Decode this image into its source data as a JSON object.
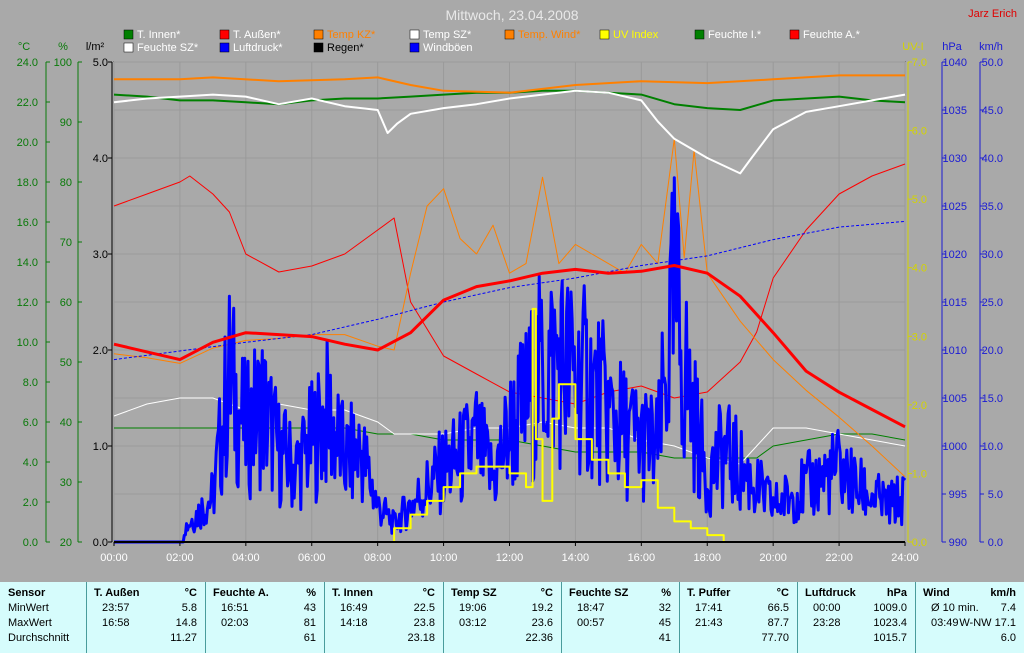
{
  "title": "Mittwoch, 23.04.2008",
  "author": "Jarz Erich",
  "axis_units": {
    "temp": "°C",
    "humidity": "%",
    "solar": "l/m²",
    "uv": "UV-I",
    "pressure": "hPa",
    "wind": "km/h"
  },
  "colors": {
    "background": "#a9a9a9",
    "title": "#e8e8e8",
    "author": "#e00000",
    "temp_axis": "#0a7a0a",
    "solar_axis": "#000000",
    "uv_axis": "#d4d400",
    "pressure_axis": "#1a1ad4",
    "t_innen": "#008000",
    "t_aussen": "#ff0000",
    "temp_kz": "#ff8000",
    "temp_sz": "#ffffff",
    "temp_wind": "#ff8000",
    "uv_index": "#ffff00",
    "feuchte_i": "#008000",
    "feuchte_a": "#ff0000",
    "feuchte_sz": "#ffffff",
    "luftdruck": "#0000ff",
    "regen": "#000000",
    "windboeen": "#0000ff",
    "stats_bg": "#d6fcfc"
  },
  "legend": [
    {
      "name": "T. Innen*",
      "color": "#008000",
      "icon": "square-icon"
    },
    {
      "name": "T. Außen*",
      "color": "#ff0000",
      "icon": "square-icon"
    },
    {
      "name": "Temp KZ*",
      "color": "#ff8000",
      "icon": "square-icon"
    },
    {
      "name": "Temp SZ*",
      "color": "#ffffff",
      "icon": "square-icon"
    },
    {
      "name": "Temp. Wind*",
      "color": "#ff8000",
      "icon": "square-icon"
    },
    {
      "name": "UV Index",
      "color": "#ffff00",
      "icon": "square-icon"
    },
    {
      "name": "Feuchte I.*",
      "color": "#008000",
      "icon": "square-icon"
    },
    {
      "name": "Feuchte A.*",
      "color": "#ff0000",
      "icon": "square-icon"
    },
    {
      "name": "Feuchte SZ*",
      "color": "#ffffff",
      "icon": "square-icon"
    },
    {
      "name": "Luftdruck*",
      "color": "#0000ff",
      "icon": "square-icon"
    },
    {
      "name": "Regen*",
      "color": "#000000",
      "icon": "square-icon"
    },
    {
      "name": "Windböen",
      "color": "#0000ff",
      "icon": "square-icon"
    }
  ],
  "chart_data": {
    "type": "line",
    "title": "Mittwoch, 23.04.2008",
    "x_ticks": [
      "00:00",
      "02:00",
      "04:00",
      "06:00",
      "08:00",
      "10:00",
      "12:00",
      "14:00",
      "16:00",
      "18:00",
      "20:00",
      "22:00",
      "24:00"
    ],
    "x_range_hours": [
      0,
      24
    ],
    "grid": true,
    "axes": {
      "temp": {
        "unit": "°C",
        "range": [
          0,
          25
        ],
        "ticks": [
          "0.0",
          "2.0",
          "4.0",
          "6.0",
          "8.0",
          "10.0",
          "12.0",
          "14.0",
          "16.0",
          "18.0",
          "20.0",
          "22.0",
          "24.0"
        ]
      },
      "humidity": {
        "unit": "%",
        "range": [
          20,
          100
        ],
        "ticks": [
          "20",
          "30",
          "40",
          "50",
          "60",
          "70",
          "80",
          "90",
          "100"
        ]
      },
      "solar": {
        "unit": "l/m²",
        "range": [
          0,
          5
        ],
        "ticks": [
          "0.0",
          "1.0",
          "2.0",
          "3.0",
          "4.0",
          "5.0"
        ]
      },
      "uv": {
        "unit": "UV-I",
        "range": [
          0,
          7
        ],
        "ticks": [
          "0.0",
          "1.0",
          "2.0",
          "3.0",
          "4.0",
          "5.0",
          "6.0",
          "7.0"
        ]
      },
      "pressure": {
        "unit": "hPa",
        "range": [
          990,
          1040
        ],
        "ticks": [
          "990",
          "995",
          "1000",
          "1005",
          "1010",
          "1015",
          "1020",
          "1025",
          "1030",
          "1035",
          "1040"
        ]
      },
      "wind": {
        "unit": "km/h",
        "range": [
          0,
          50
        ],
        "ticks": [
          "0.0",
          "5.0",
          "10.0",
          "15.0",
          "20.0",
          "25.0",
          "30.0",
          "35.0",
          "40.0",
          "45.0",
          "50.0"
        ]
      }
    },
    "series": [
      {
        "name": "T. Innen*",
        "axis": "temp",
        "color": "#008000",
        "width": 2,
        "x": [
          0,
          1,
          2,
          3,
          4,
          5,
          6,
          7,
          8,
          9,
          10,
          11,
          12,
          13,
          14,
          15,
          16,
          17,
          18,
          19,
          20,
          21,
          22,
          23,
          24
        ],
        "y": [
          23.3,
          23.2,
          23.0,
          23.0,
          22.9,
          22.8,
          23.0,
          23.1,
          23.1,
          23.2,
          23.3,
          23.4,
          23.4,
          23.5,
          23.5,
          23.4,
          23.3,
          22.8,
          22.6,
          22.5,
          23.0,
          23.1,
          23.2,
          23.0,
          22.9
        ]
      },
      {
        "name": "Temp KZ*",
        "axis": "temp",
        "color": "#ff8000",
        "width": 2,
        "x": [
          0,
          2,
          3,
          5,
          7,
          8,
          9,
          10,
          12,
          14,
          16,
          18,
          20,
          22,
          24
        ],
        "y": [
          24.1,
          24.1,
          24.2,
          24.0,
          24.1,
          24.2,
          23.8,
          23.5,
          23.4,
          23.8,
          24.0,
          23.9,
          24.1,
          24.3,
          24.3
        ]
      },
      {
        "name": "Temp SZ*",
        "axis": "temp",
        "color": "#ffffff",
        "width": 2,
        "x": [
          0,
          1,
          2,
          3,
          4,
          5,
          6,
          7,
          8,
          8.3,
          8.6,
          9,
          10,
          11,
          12,
          13,
          14,
          15,
          16,
          16.5,
          17,
          18,
          19,
          19.3,
          20,
          21,
          22,
          23,
          24
        ],
        "y": [
          22.9,
          23.1,
          23.2,
          23.3,
          23.2,
          22.8,
          23.1,
          22.7,
          22.5,
          21.3,
          21.8,
          22.3,
          22.6,
          22.8,
          23.1,
          23.3,
          23.5,
          23.4,
          23.0,
          21.9,
          21.0,
          20.0,
          19.2,
          19.9,
          21.5,
          22.4,
          22.7,
          23.0,
          23.3
        ]
      },
      {
        "name": "Temp. Wind*",
        "axis": "temp",
        "color": "#ff8000",
        "width": 1,
        "x": [
          0,
          1,
          2,
          3,
          4,
          5,
          6,
          7,
          8,
          8.5,
          9,
          9.5,
          10,
          10.5,
          11,
          11.5,
          12,
          12.5,
          13,
          13.5,
          14,
          14.5,
          15,
          15.5,
          16,
          16.5,
          17,
          17.3,
          17.6,
          18,
          19,
          20,
          21,
          22,
          23,
          24
        ],
        "y": [
          9.8,
          9.6,
          9.3,
          10.1,
          10.5,
          10.6,
          10.8,
          10.8,
          10.2,
          10.0,
          14.0,
          17.5,
          18.4,
          15.8,
          15.0,
          16.5,
          14.0,
          14.5,
          19.0,
          14.5,
          15.5,
          15.0,
          14.5,
          14.0,
          15.5,
          14.5,
          21.0,
          14.8,
          20.4,
          14.0,
          11.5,
          9.5,
          7.9,
          6.5,
          5.0,
          3.4
        ]
      },
      {
        "name": "T. Außen*",
        "axis": "temp",
        "color": "#ff0000",
        "width": 3,
        "x": [
          0,
          1,
          2,
          3,
          4,
          5,
          6,
          7,
          8,
          9,
          10,
          11,
          12,
          13,
          14,
          15,
          16,
          17,
          18,
          19,
          20,
          21,
          22,
          23,
          24
        ],
        "y": [
          10.3,
          9.9,
          9.5,
          10.4,
          10.9,
          10.8,
          10.7,
          10.3,
          10.0,
          10.9,
          12.6,
          13.3,
          13.6,
          14.0,
          14.2,
          14.0,
          14.1,
          14.4,
          14.0,
          12.8,
          10.9,
          8.9,
          7.8,
          6.9,
          6.0
        ]
      },
      {
        "name": "Feuchte A.*",
        "axis": "humidity",
        "color": "#ff0000",
        "width": 1,
        "x": [
          0,
          1,
          2,
          2.3,
          3,
          3.5,
          4,
          5,
          6,
          7,
          8,
          8.5,
          9,
          10,
          11,
          12,
          13,
          14,
          15,
          16,
          17,
          18,
          19,
          19.5,
          20,
          21,
          22,
          23,
          24
        ],
        "y": [
          76,
          78,
          80,
          81,
          78,
          75,
          68,
          65,
          66,
          68,
          72,
          74,
          60,
          51,
          48,
          45,
          44,
          43,
          45,
          46,
          44,
          45,
          50,
          55,
          64,
          72,
          78,
          81,
          83
        ]
      },
      {
        "name": "Feuchte SZ*",
        "axis": "humidity",
        "color": "#ffffff",
        "width": 1,
        "x": [
          0,
          1,
          2,
          3,
          4,
          5,
          6,
          7,
          8,
          8.5,
          9,
          10,
          11,
          12,
          13,
          14,
          15,
          16,
          17,
          18,
          19,
          19.5,
          20,
          21,
          22,
          23,
          24
        ],
        "y": [
          41,
          43,
          44,
          44,
          42,
          43,
          42,
          42,
          40,
          38,
          38,
          38,
          39,
          39,
          40,
          39,
          39,
          37,
          36,
          34,
          33,
          36,
          39,
          39,
          38,
          37,
          36
        ]
      },
      {
        "name": "Feuchte I.*",
        "axis": "humidity",
        "color": "#008000",
        "width": 1,
        "x": [
          0,
          1,
          2,
          3,
          4,
          5,
          6,
          7,
          8,
          9,
          10,
          11,
          12,
          13,
          14,
          15,
          16,
          17,
          18,
          19,
          19.5,
          20,
          21,
          22,
          23,
          24
        ],
        "y": [
          39,
          39,
          39,
          39,
          39,
          39,
          39,
          39,
          38,
          38,
          37,
          37,
          37,
          36,
          35,
          35,
          35,
          34,
          34,
          34,
          34,
          36,
          37,
          38,
          38,
          37
        ]
      },
      {
        "name": "Luftdruck*",
        "axis": "pressure",
        "color": "#0000ff",
        "width": 1,
        "dashed": true,
        "x": [
          0,
          2,
          4,
          6,
          8,
          10,
          12,
          14,
          16,
          18,
          20,
          22,
          24
        ],
        "y": [
          1009.0,
          1009.9,
          1010.8,
          1011.6,
          1013.2,
          1015.0,
          1016.5,
          1017.5,
          1018.8,
          1019.8,
          1021.5,
          1022.8,
          1023.4
        ]
      },
      {
        "name": "UV Index",
        "axis": "uv",
        "color": "#ffff00",
        "width": 2,
        "x": [
          0,
          8,
          8.5,
          9,
          9.5,
          10,
          10.5,
          11,
          11.5,
          12,
          12.5,
          12.7,
          12.8,
          13,
          13.3,
          13.5,
          14,
          14.5,
          15,
          15.5,
          16,
          16.5,
          17,
          17.5,
          18,
          18.5,
          19,
          24
        ],
        "y": [
          0,
          0,
          0.2,
          0.4,
          0.6,
          0.8,
          1.0,
          1.1,
          1.1,
          1.0,
          0.8,
          3.4,
          1.5,
          0.6,
          1.8,
          2.3,
          1.5,
          1.2,
          1.0,
          0.8,
          0.9,
          0.5,
          0.3,
          0.2,
          0.1,
          0,
          0,
          0
        ]
      },
      {
        "name": "Windböen",
        "axis": "wind",
        "color": "#0000ff",
        "width": 3,
        "noisy": true,
        "x": [
          0,
          1,
          2,
          3,
          3.5,
          4,
          4.5,
          5,
          5.5,
          6,
          6.5,
          7,
          7.5,
          8,
          8.5,
          9,
          9.5,
          10,
          10.5,
          11,
          11.5,
          12,
          12.5,
          13,
          13.5,
          14,
          14.5,
          15,
          15.5,
          16,
          16.5,
          17,
          17.5,
          18,
          18.5,
          19,
          19.5,
          20,
          20.5,
          21,
          21.5,
          22,
          22.5,
          23,
          23.5,
          24
        ],
        "y": [
          0,
          0,
          1,
          5,
          18,
          12,
          15,
          10,
          8,
          11,
          14,
          9,
          10,
          4,
          2,
          4,
          6,
          8,
          9,
          11,
          7,
          12,
          15,
          19,
          20,
          18,
          17,
          14,
          12,
          11,
          10,
          26,
          15,
          7,
          10,
          8,
          6,
          4,
          5,
          6,
          7,
          8,
          6,
          5,
          4,
          5
        ]
      },
      {
        "name": "Regen*",
        "axis": "solar",
        "color": "#000000",
        "width": 2,
        "x": [
          0,
          24
        ],
        "y": [
          0,
          0
        ]
      }
    ]
  },
  "stats": {
    "header_sensor": "Sensor",
    "row_labels": [
      "MinWert",
      "MaxWert",
      "Durchschnitt"
    ],
    "columns": [
      {
        "name": "T. Außen",
        "unit": "°C",
        "min_time": "23:57",
        "min_val": "5.8",
        "max_time": "16:58",
        "max_val": "14.8",
        "avg": "11.27"
      },
      {
        "name": "Feuchte A.",
        "unit": "%",
        "min_time": "16:51",
        "min_val": "43",
        "max_time": "02:03",
        "max_val": "81",
        "avg": "61"
      },
      {
        "name": "T. Innen",
        "unit": "°C",
        "min_time": "16:49",
        "min_val": "22.5",
        "max_time": "14:18",
        "max_val": "23.8",
        "avg": "23.18"
      },
      {
        "name": "Temp SZ",
        "unit": "°C",
        "min_time": "19:06",
        "min_val": "19.2",
        "max_time": "03:12",
        "max_val": "23.6",
        "avg": "22.36"
      },
      {
        "name": "Feuchte SZ",
        "unit": "%",
        "min_time": "18:47",
        "min_val": "32",
        "max_time": "00:57",
        "max_val": "45",
        "avg": "41"
      },
      {
        "name": "T. Puffer",
        "unit": "°C",
        "min_time": "17:41",
        "min_val": "66.5",
        "max_time": "21:43",
        "max_val": "87.7",
        "avg": "77.70"
      },
      {
        "name": "Luftdruck",
        "unit": "hPa",
        "min_time": "00:00",
        "min_val": "1009.0",
        "max_time": "23:28",
        "max_val": "1023.4",
        "avg": "1015.7"
      },
      {
        "name": "Wind",
        "unit": "km/h",
        "min_time": "Ø 10 min.",
        "min_val": "7.4",
        "max_time": "03:49",
        "max_val": "W-NW 17.1",
        "avg": "6.0"
      }
    ]
  }
}
